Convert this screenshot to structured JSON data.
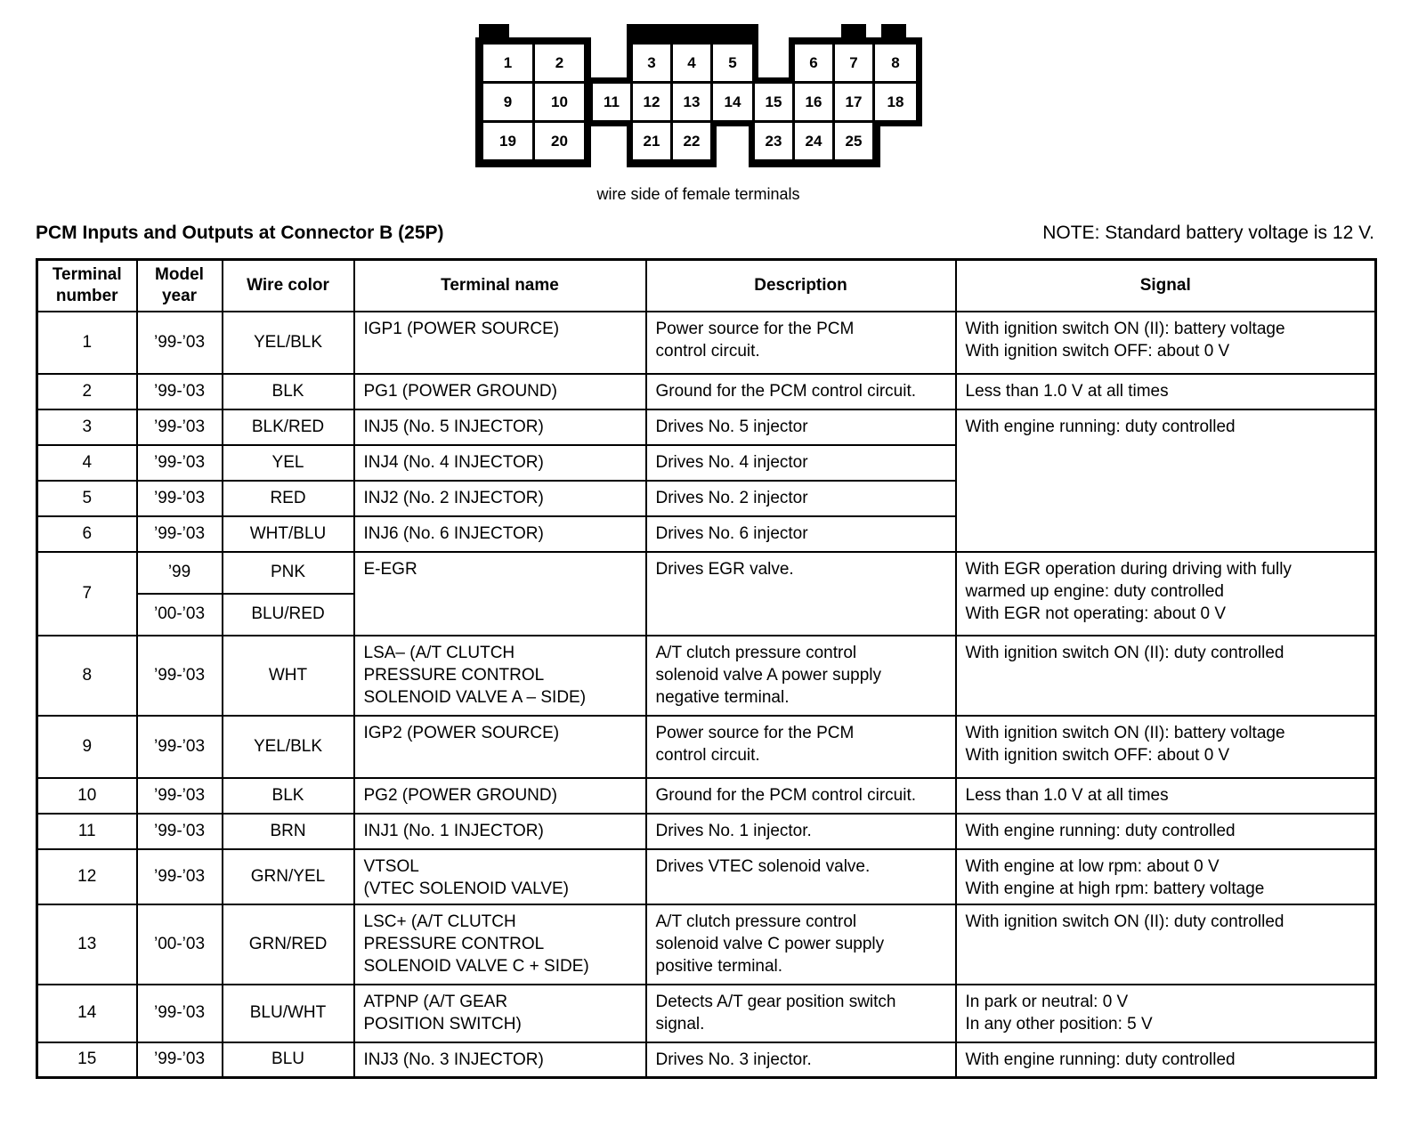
{
  "connector": {
    "caption": "wire side of female terminals",
    "cells": [
      "1",
      "2",
      "3",
      "4",
      "5",
      "6",
      "7",
      "8",
      "9",
      "10",
      "11",
      "12",
      "13",
      "14",
      "15",
      "16",
      "17",
      "18",
      "19",
      "20",
      "21",
      "22",
      "23",
      "24",
      "25"
    ]
  },
  "heading": {
    "title": "PCM Inputs and Outputs at Connector B (25P)",
    "note": "NOTE: Standard battery voltage is 12 V."
  },
  "table": {
    "headers": {
      "terminal": "Terminal\nnumber",
      "year": "Model\nyear",
      "wire": "Wire color",
      "name": "Terminal name",
      "description": "Description",
      "signal": "Signal"
    },
    "rows": [
      {
        "terminal": "1",
        "year": "’99-’03",
        "wire": "YEL/BLK",
        "name": "IGP1 (POWER SOURCE)",
        "description": "Power source for the PCM\ncontrol circuit.",
        "signal": "With ignition switch ON (II): battery voltage\nWith ignition switch OFF: about 0 V"
      },
      {
        "terminal": "2",
        "year": "’99-’03",
        "wire": "BLK",
        "name": "PG1 (POWER GROUND)",
        "description": "Ground for the PCM control circuit.",
        "signal": "Less than 1.0 V at all times"
      },
      {
        "terminal": "3",
        "year": "’99-’03",
        "wire": "BLK/RED",
        "name": "INJ5 (No. 5 INJECTOR)",
        "description": "Drives No. 5 injector",
        "signal": "With engine running: duty controlled"
      },
      {
        "terminal": "4",
        "year": "’99-’03",
        "wire": "YEL",
        "name": "INJ4 (No. 4 INJECTOR)",
        "description": "Drives No. 4 injector"
      },
      {
        "terminal": "5",
        "year": "’99-’03",
        "wire": "RED",
        "name": "INJ2 (No. 2 INJECTOR)",
        "description": "Drives No. 2 injector"
      },
      {
        "terminal": "6",
        "year": "’99-’03",
        "wire": "WHT/BLU",
        "name": "INJ6 (No. 6 INJECTOR)",
        "description": "Drives No. 6 injector"
      },
      {
        "terminal": "7",
        "year_a": "’99",
        "wire_a": "PNK",
        "year_b": "’00-’03",
        "wire_b": "BLU/RED",
        "name": "E-EGR",
        "description": "Drives EGR valve.",
        "signal": "With EGR operation during driving with fully\nwarmed up engine: duty controlled\nWith EGR not operating: about 0 V"
      },
      {
        "terminal": "8",
        "year": "’99-’03",
        "wire": "WHT",
        "name": "LSA– (A/T CLUTCH\nPRESSURE CONTROL\nSOLENOID VALVE A – SIDE)",
        "description": "A/T clutch pressure control\nsolenoid valve A power supply\nnegative terminal.",
        "signal": "With ignition switch ON (II): duty controlled"
      },
      {
        "terminal": "9",
        "year": "’99-’03",
        "wire": "YEL/BLK",
        "name": "IGP2 (POWER SOURCE)",
        "description": "Power source for the PCM\ncontrol circuit.",
        "signal": "With ignition switch ON (II): battery voltage\nWith ignition switch OFF: about 0 V"
      },
      {
        "terminal": "10",
        "year": "’99-’03",
        "wire": "BLK",
        "name": "PG2 (POWER GROUND)",
        "description": "Ground for the PCM control circuit.",
        "signal": "Less than 1.0 V at all times"
      },
      {
        "terminal": "11",
        "year": "’99-’03",
        "wire": "BRN",
        "name": "INJ1 (No. 1 INJECTOR)",
        "description": "Drives No. 1 injector.",
        "signal": "With engine running: duty controlled"
      },
      {
        "terminal": "12",
        "year": "’99-’03",
        "wire": "GRN/YEL",
        "name": "VTSOL\n(VTEC SOLENOID VALVE)",
        "description": "Drives VTEC solenoid valve.",
        "signal": "With engine at low rpm: about 0 V\nWith engine at high rpm: battery voltage"
      },
      {
        "terminal": "13",
        "year": "’00-’03",
        "wire": "GRN/RED",
        "name": "LSC+ (A/T CLUTCH\nPRESSURE CONTROL\nSOLENOID VALVE C + SIDE)",
        "description": "A/T clutch pressure control\nsolenoid valve C power supply\npositive terminal.",
        "signal": "With ignition switch ON (II): duty controlled"
      },
      {
        "terminal": "14",
        "year": "’99-’03",
        "wire": "BLU/WHT",
        "name": "ATPNP (A/T GEAR\nPOSITION SWITCH)",
        "description": "Detects A/T gear position switch\nsignal.",
        "signal": "In park or neutral: 0 V\nIn any other position: 5 V"
      },
      {
        "terminal": "15",
        "year": "’99-’03",
        "wire": "BLU",
        "name": "INJ3 (No. 3 INJECTOR)",
        "description": "Drives No. 3 injector.",
        "signal": "With engine running: duty controlled"
      }
    ]
  }
}
